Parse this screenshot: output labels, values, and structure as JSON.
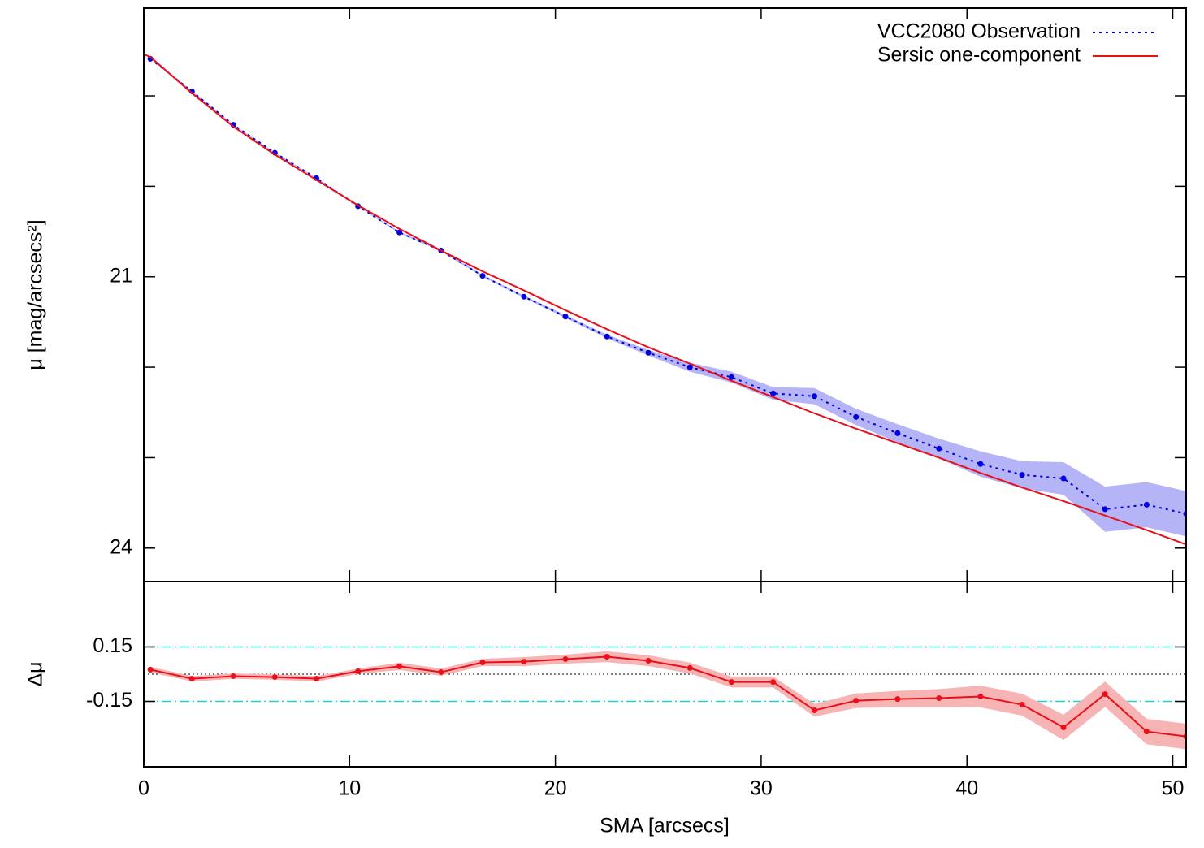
{
  "chart_data": [
    {
      "type": "line",
      "ylabel": "μ [mag/arcsecs²]",
      "xlim": [
        0,
        50.65
      ],
      "ylim": [
        24.37,
        18.03
      ],
      "yticks": [
        21,
        24
      ],
      "yticks_unlabeled": [
        19,
        20,
        22,
        23
      ],
      "legend": "upper right",
      "series": [
        {
          "name": "VCC2080 Observation",
          "color": "#0000e0",
          "style": "dotted",
          "markers": true,
          "band_color": "#b4b4f6",
          "x": [
            0.32,
            2.34,
            4.35,
            6.37,
            8.39,
            10.41,
            12.42,
            14.44,
            16.46,
            18.47,
            20.49,
            22.51,
            24.52,
            26.54,
            28.56,
            30.58,
            32.59,
            34.61,
            36.63,
            38.64,
            40.66,
            42.68,
            44.69,
            46.71,
            48.73,
            50.65
          ],
          "values": [
            18.59,
            18.95,
            19.32,
            19.63,
            19.91,
            20.22,
            20.51,
            20.71,
            20.99,
            21.22,
            21.44,
            21.66,
            21.84,
            22.0,
            22.11,
            22.29,
            22.32,
            22.55,
            22.73,
            22.9,
            23.07,
            23.19,
            23.23,
            23.57,
            23.52,
            23.62
          ],
          "errors": [
            0.005,
            0.005,
            0.005,
            0.005,
            0.005,
            0.007,
            0.008,
            0.01,
            0.01,
            0.012,
            0.015,
            0.02,
            0.03,
            0.05,
            0.06,
            0.07,
            0.09,
            0.09,
            0.1,
            0.11,
            0.14,
            0.15,
            0.18,
            0.25,
            0.25,
            0.25
          ]
        },
        {
          "name": "Sersic one-component",
          "color": "#e8101a",
          "style": "solid",
          "markers": false,
          "x": [
            0,
            0.32,
            2.34,
            4.35,
            6.37,
            8.39,
            10.41,
            12.42,
            14.44,
            16.46,
            18.47,
            20.49,
            22.51,
            24.52,
            26.54,
            28.56,
            30.58,
            32.59,
            34.61,
            36.63,
            38.64,
            40.66,
            42.68,
            44.69,
            46.71,
            48.73,
            50.65
          ],
          "values": [
            18.54,
            18.57,
            18.97,
            19.34,
            19.65,
            19.93,
            20.21,
            20.47,
            20.71,
            20.94,
            21.15,
            21.37,
            21.58,
            21.78,
            21.96,
            22.15,
            22.33,
            22.51,
            22.68,
            22.84,
            23.0,
            23.17,
            23.33,
            23.48,
            23.64,
            23.8,
            23.96
          ]
        }
      ]
    },
    {
      "type": "line",
      "xlabel": "SMA [arcsecs]",
      "ylabel": "Δμ",
      "xlim": [
        0,
        50.65
      ],
      "ylim": [
        -0.51,
        0.51
      ],
      "xticks": [
        0,
        10,
        20,
        30,
        40,
        50
      ],
      "yticks": [
        0.15,
        -0.15
      ],
      "grid": true,
      "grid_color": "#20d0d0",
      "reference_line": 0,
      "series": [
        {
          "name": "Δμ",
          "color": "#e8101a",
          "style": "solid",
          "markers": true,
          "band_color": "#f6b4b4",
          "x": [
            0.32,
            2.34,
            4.35,
            6.37,
            8.39,
            10.41,
            12.42,
            14.44,
            16.46,
            18.47,
            20.49,
            22.51,
            24.52,
            26.54,
            28.56,
            30.58,
            32.59,
            34.61,
            36.63,
            38.64,
            40.66,
            42.68,
            44.69,
            46.71,
            48.73,
            50.65
          ],
          "values": [
            0.025,
            -0.025,
            -0.011,
            -0.016,
            -0.025,
            0.016,
            0.043,
            0.011,
            0.065,
            0.069,
            0.083,
            0.096,
            0.074,
            0.034,
            -0.043,
            -0.043,
            -0.199,
            -0.146,
            -0.137,
            -0.132,
            -0.123,
            -0.168,
            -0.293,
            -0.11,
            -0.316,
            -0.343
          ],
          "errors": [
            0.015,
            0.015,
            0.015,
            0.015,
            0.015,
            0.015,
            0.02,
            0.02,
            0.02,
            0.025,
            0.025,
            0.03,
            0.03,
            0.03,
            0.03,
            0.03,
            0.035,
            0.04,
            0.045,
            0.05,
            0.06,
            0.06,
            0.07,
            0.07,
            0.07,
            0.07
          ]
        }
      ]
    }
  ]
}
